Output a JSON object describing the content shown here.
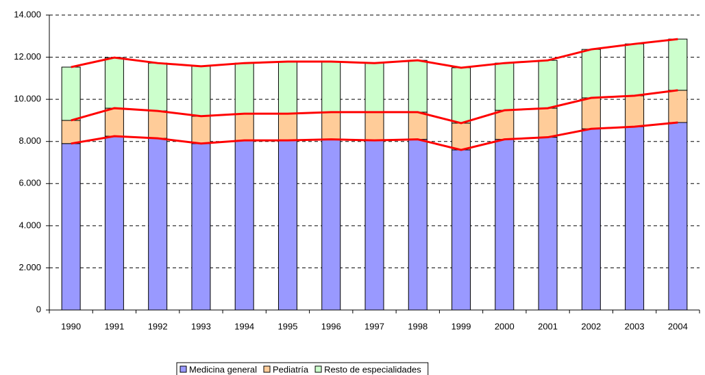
{
  "chart_data": {
    "type": "stacked-bar",
    "categories": [
      "1990",
      "1991",
      "1992",
      "1993",
      "1994",
      "1995",
      "1996",
      "1997",
      "1998",
      "1999",
      "2000",
      "2001",
      "2002",
      "2003",
      "2004"
    ],
    "series": [
      {
        "name": "Medicina general",
        "color": "#9999ff",
        "values": [
          7900,
          8250,
          8150,
          7900,
          8050,
          8050,
          8100,
          8050,
          8100,
          7600,
          8100,
          8200,
          8600,
          8700,
          8900
        ]
      },
      {
        "name": "Pediatría",
        "color": "#ffcc99",
        "values": [
          1100,
          1330,
          1300,
          1300,
          1270,
          1270,
          1290,
          1340,
          1290,
          1270,
          1380,
          1380,
          1470,
          1470,
          1530
        ]
      },
      {
        "name": "Resto de especialidades",
        "color": "#ccffcc",
        "values": [
          2530,
          2400,
          2270,
          2370,
          2400,
          2470,
          2400,
          2330,
          2460,
          2630,
          2240,
          2270,
          2300,
          2460,
          2430
        ]
      }
    ],
    "line_color": "#ff0000",
    "ylim": [
      0,
      14000
    ],
    "yticks": [
      0,
      {
        "value": 2000,
        "label": "2.000"
      },
      {
        "value": 4000,
        "label": "4.000"
      },
      {
        "value": 6000,
        "label": "6.000"
      },
      {
        "value": 8000,
        "label": "8.000"
      },
      {
        "value": 10000,
        "label": "10.000"
      },
      {
        "value": 12000,
        "label": "12.000"
      },
      {
        "value": 14000,
        "label": "14.000"
      }
    ],
    "grid": true
  }
}
